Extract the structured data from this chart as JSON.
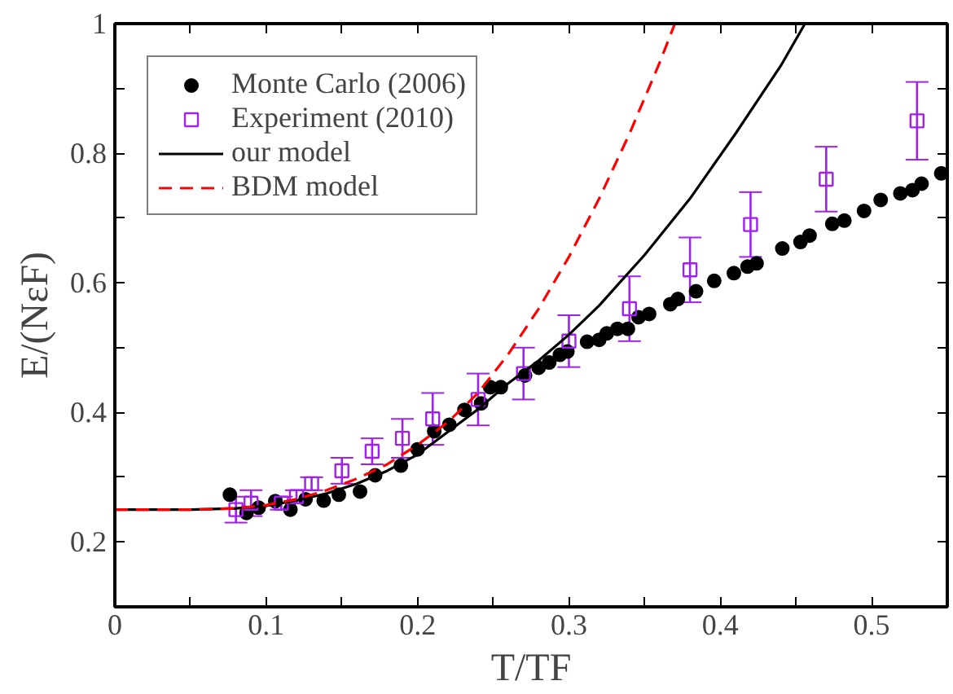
{
  "chart_data": {
    "type": "scatter",
    "xlabel": "T/TF",
    "ylabel": "E/(NεF)",
    "xlim": [
      0,
      0.55
    ],
    "ylim": [
      0.1,
      1
    ],
    "xticks": [
      0,
      {
        "value": 0.05,
        "label": null
      },
      0.1,
      {
        "value": 0.15,
        "label": null
      },
      0.2,
      {
        "value": 0.25,
        "label": null
      },
      0.3,
      {
        "value": 0.35,
        "label": null
      },
      0.4,
      {
        "value": 0.45,
        "label": null
      },
      0.5,
      {
        "value": 0.55,
        "label": null
      }
    ],
    "yticks": [
      {
        "value": 0.1,
        "label": null
      },
      0.2,
      {
        "value": 0.3,
        "label": null
      },
      0.4,
      {
        "value": 0.5,
        "label": null
      },
      0.6,
      {
        "value": 0.7,
        "label": null
      },
      0.8,
      {
        "value": 0.9,
        "label": null
      },
      1
    ],
    "legend": "top left",
    "grid": false,
    "series": [
      {
        "name": "Monte Carlo (2006)",
        "marker": "circle",
        "color": "#000000",
        "x": [
          0.076,
          0.087,
          0.095,
          0.106,
          0.116,
          0.126,
          0.138,
          0.148,
          0.162,
          0.172,
          0.189,
          0.2,
          0.211,
          0.221,
          0.231,
          0.242,
          0.248,
          0.255,
          0.271,
          0.28,
          0.287,
          0.294,
          0.299,
          0.312,
          0.32,
          0.325,
          0.332,
          0.339,
          0.346,
          0.353,
          0.367,
          0.372,
          0.384,
          0.396,
          0.409,
          0.418,
          0.424,
          0.441,
          0.453,
          0.459,
          0.474,
          0.482,
          0.495,
          0.506,
          0.519,
          0.527,
          0.533,
          0.546
        ],
        "values": [
          0.273,
          0.245,
          0.253,
          0.263,
          0.25,
          0.266,
          0.264,
          0.273,
          0.278,
          0.303,
          0.318,
          0.343,
          0.371,
          0.381,
          0.404,
          0.414,
          0.439,
          0.439,
          0.457,
          0.469,
          0.477,
          0.489,
          0.494,
          0.509,
          0.512,
          0.522,
          0.529,
          0.529,
          0.547,
          0.552,
          0.567,
          0.575,
          0.587,
          0.603,
          0.615,
          0.625,
          0.63,
          0.653,
          0.663,
          0.673,
          0.691,
          0.696,
          0.711,
          0.728,
          0.738,
          0.743,
          0.753,
          0.769
        ]
      },
      {
        "name": "Experiment (2010)",
        "marker": "square",
        "color": "#a020f0",
        "x": [
          0.08,
          0.09,
          0.11,
          0.12,
          0.13,
          0.15,
          0.17,
          0.19,
          0.21,
          0.24,
          0.27,
          0.3,
          0.34,
          0.38,
          0.42,
          0.47,
          0.53
        ],
        "values": [
          0.25,
          0.26,
          0.26,
          0.27,
          0.29,
          0.31,
          0.34,
          0.36,
          0.39,
          0.42,
          0.46,
          0.51,
          0.56,
          0.62,
          0.69,
          0.76,
          0.85
        ],
        "errors": [
          0.02,
          0.02,
          0.01,
          0.01,
          0.01,
          0.02,
          0.02,
          0.03,
          0.04,
          0.04,
          0.04,
          0.04,
          0.05,
          0.05,
          0.05,
          0.05,
          0.06
        ]
      },
      {
        "name": "our model",
        "type": "line",
        "line_style": "solid",
        "color": "#000000",
        "x": [
          0,
          0.05,
          0.08,
          0.1,
          0.12,
          0.14,
          0.16,
          0.18,
          0.2,
          0.22,
          0.24,
          0.26,
          0.28,
          0.3,
          0.32,
          0.35,
          0.38,
          0.41,
          0.44,
          0.456
        ],
        "values": [
          0.25,
          0.25,
          0.252,
          0.256,
          0.264,
          0.275,
          0.29,
          0.31,
          0.335,
          0.37,
          0.405,
          0.445,
          0.48,
          0.52,
          0.565,
          0.643,
          0.73,
          0.83,
          0.935,
          1.0
        ]
      },
      {
        "name": "BDM model",
        "type": "line",
        "line_style": "dashed",
        "color": "#ff0000",
        "x": [
          0,
          0.05,
          0.08,
          0.1,
          0.12,
          0.14,
          0.16,
          0.18,
          0.2,
          0.22,
          0.24,
          0.26,
          0.28,
          0.3,
          0.32,
          0.34,
          0.36,
          0.37
        ],
        "values": [
          0.25,
          0.25,
          0.252,
          0.257,
          0.266,
          0.28,
          0.298,
          0.32,
          0.35,
          0.385,
          0.43,
          0.49,
          0.56,
          0.64,
          0.73,
          0.83,
          0.94,
          1.0
        ]
      }
    ]
  }
}
